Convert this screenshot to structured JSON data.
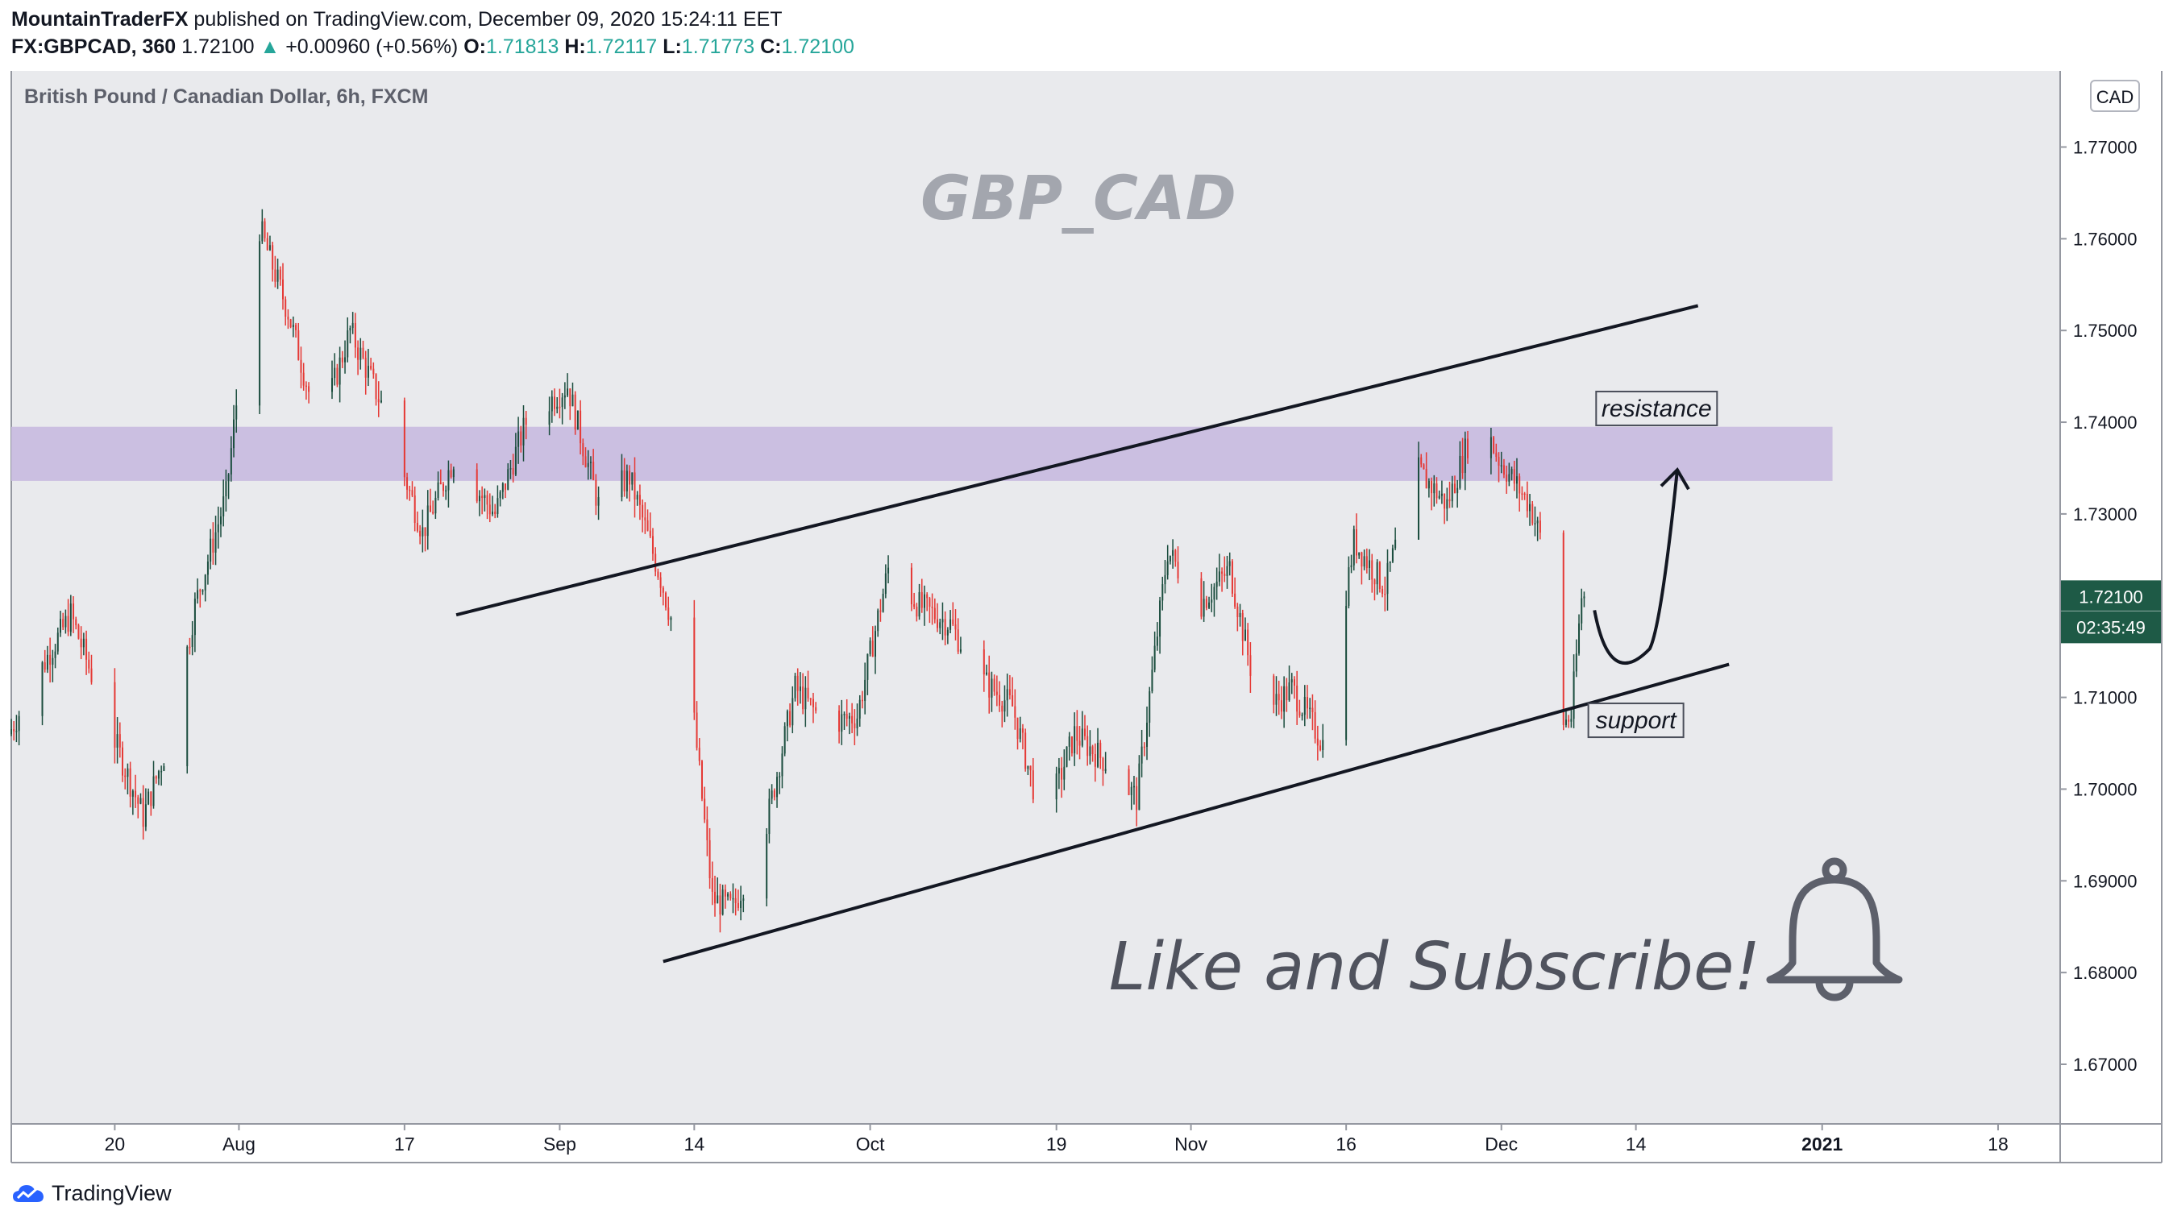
{
  "header": {
    "author": "MountainTraderFX",
    "published_text": "published on TradingView.com, December 09, 2020 15:24:11 EET",
    "symbol": "FX:GBPCAD, 360",
    "last": "1.72100",
    "change": "+0.00960 (+0.56%)",
    "open_label": "O:",
    "open": "1.71813",
    "high_label": "H:",
    "high": "1.72117",
    "low_label": "L:",
    "low": "1.71773",
    "close_label": "C:",
    "close": "1.72100"
  },
  "footer": {
    "brand": "TradingView"
  },
  "colors": {
    "up": "#26a69a",
    "down": "#ef5350",
    "candle_up_body": "#1b4d3e",
    "candle_down_body": "#e53935",
    "zone": "#c9bde0",
    "price_tag": "#1e5a46",
    "plot_bg": "#e9eaed"
  },
  "chart_data": {
    "type": "candlestick",
    "title": "British Pound / Canadian Dollar, 6h, FXCM",
    "watermark": "GBP_CAD",
    "currency_label": "CAD",
    "y_ticks": [
      "1.77000",
      "1.76000",
      "1.75000",
      "1.74000",
      "1.73000",
      "1.72000",
      "1.71000",
      "1.70000",
      "1.69000",
      "1.68000",
      "1.67000"
    ],
    "y_tick_values": [
      1.77,
      1.76,
      1.75,
      1.74,
      1.73,
      1.72,
      1.71,
      1.7,
      1.69,
      1.68,
      1.67
    ],
    "ylim": [
      1.6635,
      1.7783
    ],
    "x_ticks": [
      {
        "label": "20",
        "date": "2020-07-20"
      },
      {
        "label": "Aug",
        "date": "2020-08-01"
      },
      {
        "label": "17",
        "date": "2020-08-17"
      },
      {
        "label": "Sep",
        "date": "2020-09-01"
      },
      {
        "label": "14",
        "date": "2020-09-14"
      },
      {
        "label": "Oct",
        "date": "2020-10-01"
      },
      {
        "label": "19",
        "date": "2020-10-19"
      },
      {
        "label": "Nov",
        "date": "2020-11-01"
      },
      {
        "label": "16",
        "date": "2020-11-16"
      },
      {
        "label": "Dec",
        "date": "2020-12-01"
      },
      {
        "label": "14",
        "date": "2020-12-14"
      },
      {
        "label": "2021",
        "date": "2021-01-01"
      },
      {
        "label": "18",
        "date": "2021-01-18"
      }
    ],
    "xlim": [
      "2020-07-10",
      "2021-01-24"
    ],
    "price_key_points": [
      [
        "2020-07-10",
        1.706
      ],
      [
        "2020-07-14",
        1.715
      ],
      [
        "2020-07-16",
        1.719
      ],
      [
        "2020-07-20",
        1.706
      ],
      [
        "2020-07-23",
        1.697
      ],
      [
        "2020-07-26",
        1.707
      ],
      [
        "2020-07-28",
        1.72
      ],
      [
        "2020-07-31",
        1.732
      ],
      [
        "2020-08-03",
        1.762
      ],
      [
        "2020-08-06",
        1.752
      ],
      [
        "2020-08-09",
        1.739
      ],
      [
        "2020-08-12",
        1.75
      ],
      [
        "2020-08-15",
        1.742
      ],
      [
        "2020-08-19",
        1.728
      ],
      [
        "2020-08-22",
        1.736
      ],
      [
        "2020-08-26",
        1.73
      ],
      [
        "2020-08-29",
        1.74
      ],
      [
        "2020-09-02",
        1.744
      ],
      [
        "2020-09-05",
        1.731
      ],
      [
        "2020-09-08",
        1.734
      ],
      [
        "2020-09-11",
        1.723
      ],
      [
        "2020-09-14",
        1.71
      ],
      [
        "2020-09-16",
        1.688
      ],
      [
        "2020-09-18",
        1.687
      ],
      [
        "2020-09-21",
        1.695
      ],
      [
        "2020-09-24",
        1.711
      ],
      [
        "2020-09-27",
        1.707
      ],
      [
        "2020-09-30",
        1.708
      ],
      [
        "2020-10-03",
        1.724
      ],
      [
        "2020-10-06",
        1.72
      ],
      [
        "2020-10-09",
        1.718
      ],
      [
        "2020-10-12",
        1.712
      ],
      [
        "2020-10-15",
        1.709
      ],
      [
        "2020-10-18",
        1.696
      ],
      [
        "2020-10-21",
        1.706
      ],
      [
        "2020-10-24",
        1.703
      ],
      [
        "2020-10-27",
        1.699
      ],
      [
        "2020-10-30",
        1.726
      ],
      [
        "2020-11-02",
        1.72
      ],
      [
        "2020-11-05",
        1.724
      ],
      [
        "2020-11-08",
        1.708
      ],
      [
        "2020-11-11",
        1.711
      ],
      [
        "2020-11-14",
        1.705
      ],
      [
        "2020-11-17",
        1.727
      ],
      [
        "2020-11-20",
        1.722
      ],
      [
        "2020-11-23",
        1.735
      ],
      [
        "2020-11-26",
        1.731
      ],
      [
        "2020-11-29",
        1.741
      ],
      [
        "2020-12-01",
        1.736
      ],
      [
        "2020-12-04",
        1.731
      ],
      [
        "2020-12-06",
        1.724
      ],
      [
        "2020-12-07",
        1.707
      ],
      [
        "2020-12-08",
        1.708
      ],
      [
        "2020-12-09",
        1.721
      ]
    ],
    "last_price": 1.721,
    "last_price_label": "1.72100",
    "countdown_label": "02:35:49",
    "zone": {
      "label": "resistance zone",
      "from": 1.7336,
      "to": 1.7395,
      "start_date": "2020-07-10",
      "end_date": "2021-01-02"
    },
    "trendlines": [
      {
        "name": "upper channel",
        "from": [
          "2020-08-22",
          1.719
        ],
        "to": [
          "2020-12-20",
          1.7527
        ]
      },
      {
        "name": "lower channel",
        "from": [
          "2020-09-11",
          1.6812
        ],
        "to": [
          "2020-12-23",
          1.7136
        ]
      }
    ],
    "annotations": [
      {
        "text": "resistance",
        "date": "2020-12-16",
        "price": 1.7415
      },
      {
        "text": "support",
        "date": "2020-12-14",
        "price": 1.7075
      },
      {
        "text": "Like and Subscribe!"
      }
    ],
    "projection_arrow": {
      "from": [
        "2020-12-10",
        1.7195
      ],
      "via": [
        "2020-12-13",
        1.716
      ],
      "to": [
        "2020-12-18",
        1.7348
      ]
    },
    "grid": false,
    "legend": "none"
  }
}
